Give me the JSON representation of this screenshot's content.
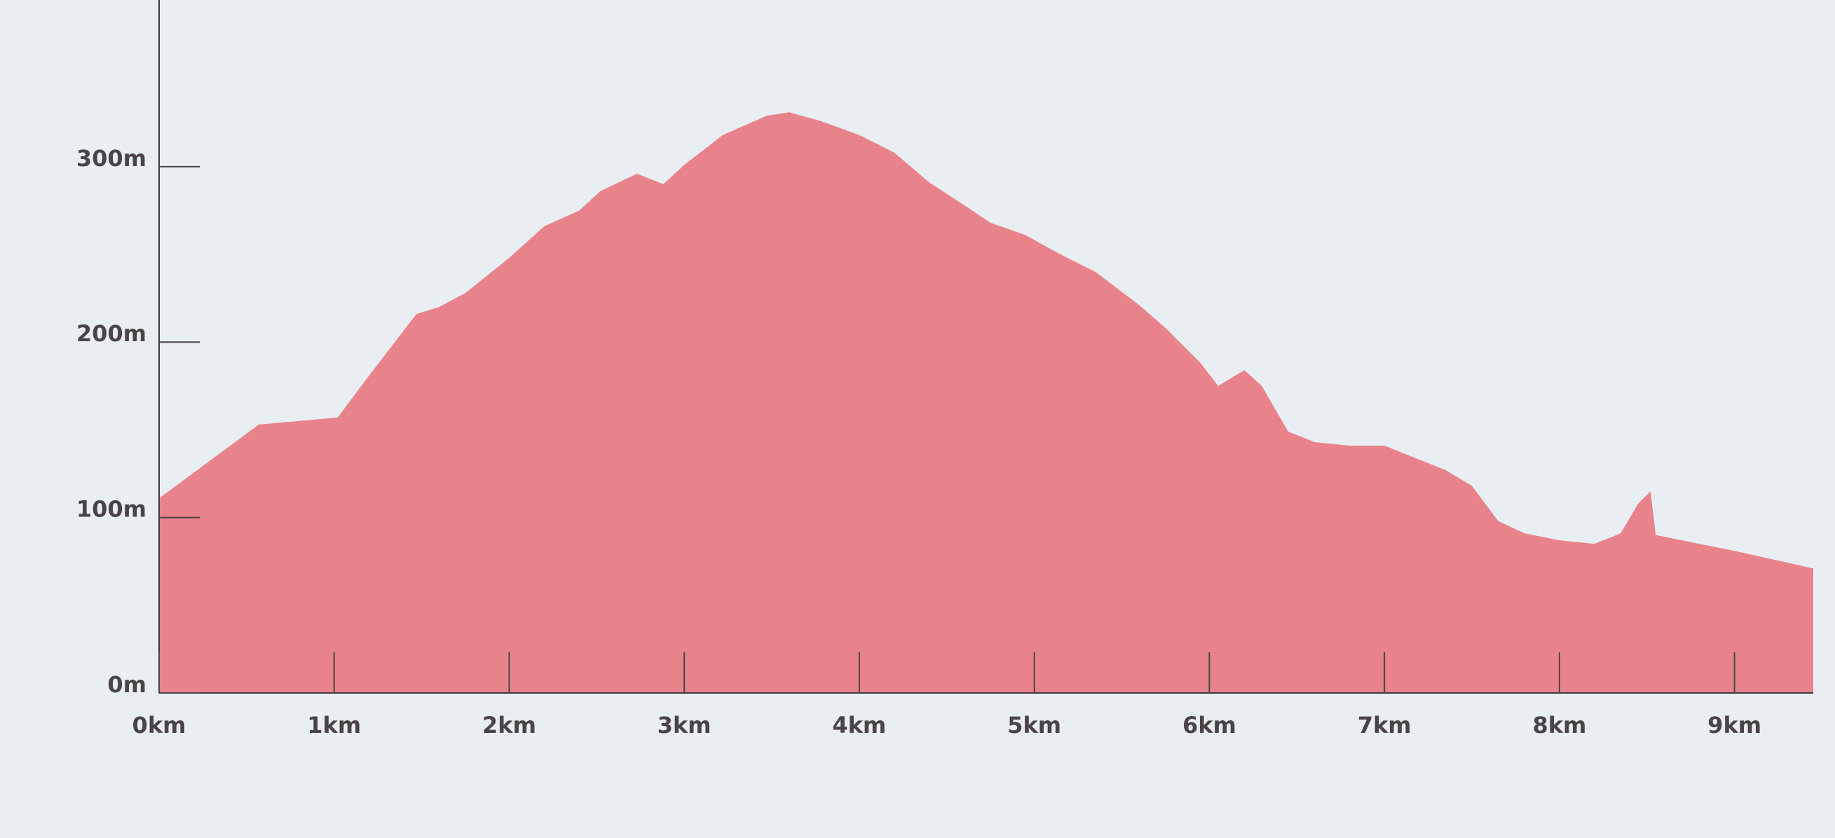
{
  "chart_data": {
    "type": "area",
    "x": [
      0,
      0.57,
      1.02,
      1.2,
      1.47,
      1.6,
      1.75,
      2.0,
      2.2,
      2.4,
      2.52,
      2.73,
      2.88,
      3.0,
      3.22,
      3.47,
      3.6,
      3.78,
      4.0,
      4.2,
      4.4,
      4.6,
      4.75,
      4.95,
      5.13,
      5.35,
      5.6,
      5.75,
      5.95,
      6.05,
      6.2,
      6.3,
      6.45,
      6.6,
      6.8,
      7.0,
      7.2,
      7.35,
      7.5,
      7.65,
      7.8,
      8.0,
      8.2,
      8.35,
      8.45,
      8.52,
      8.55,
      9.0,
      9.45
    ],
    "values": [
      111,
      153,
      157,
      181,
      216,
      220,
      228,
      248,
      266,
      275,
      286,
      296,
      290,
      301,
      318,
      329,
      331,
      326,
      318,
      308,
      291,
      278,
      268,
      261,
      251,
      240,
      221,
      208,
      188,
      175,
      184,
      175,
      149,
      143,
      141,
      141,
      133,
      127,
      118,
      98,
      91,
      87,
      85,
      91,
      108,
      115,
      90,
      81,
      71
    ],
    "color": "#e9838b",
    "xlim": [
      0,
      9.45
    ],
    "ylim": [
      0,
      395
    ],
    "xticks": [
      {
        "value": 0,
        "label": "0km"
      },
      {
        "value": 1,
        "label": "1km"
      },
      {
        "value": 2,
        "label": "2km"
      },
      {
        "value": 3,
        "label": "3km"
      },
      {
        "value": 4,
        "label": "4km"
      },
      {
        "value": 5,
        "label": "5km"
      },
      {
        "value": 6,
        "label": "6km"
      },
      {
        "value": 7,
        "label": "7km"
      },
      {
        "value": 8,
        "label": "8km"
      },
      {
        "value": 9,
        "label": "9km"
      }
    ],
    "yticks": [
      {
        "value": 0,
        "label": "0m"
      },
      {
        "value": 100,
        "label": "100m"
      },
      {
        "value": 200,
        "label": "200m"
      },
      {
        "value": 300,
        "label": "300m"
      }
    ]
  }
}
